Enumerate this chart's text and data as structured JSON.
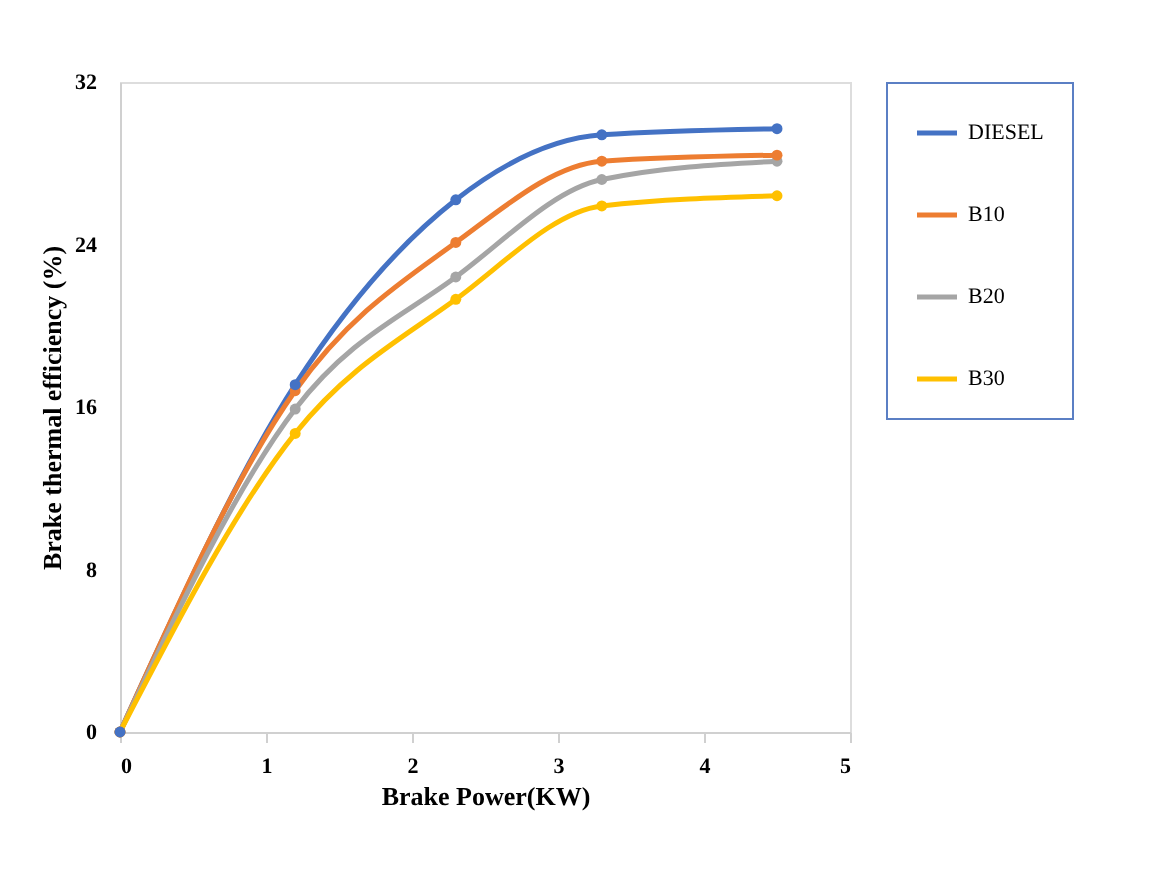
{
  "chart_data": {
    "type": "line",
    "xlabel": "Brake Power(KW)",
    "ylabel": "Brake thermal efficiency (%)",
    "x": [
      0,
      1.2,
      2.3,
      3.3,
      4.5
    ],
    "series": [
      {
        "name": "DIESEL",
        "color": "#4472c4",
        "values": [
          0,
          17.1,
          26.2,
          29.4,
          29.7
        ]
      },
      {
        "name": "B10",
        "color": "#ed7d31",
        "values": [
          0,
          16.8,
          24.1,
          28.1,
          28.4
        ]
      },
      {
        "name": "B20",
        "color": "#a5a5a5",
        "values": [
          0,
          15.9,
          22.4,
          27.2,
          28.1
        ]
      },
      {
        "name": "B30",
        "color": "#ffc000",
        "values": [
          0,
          14.7,
          21.3,
          25.9,
          26.4
        ]
      }
    ],
    "xlim": [
      0,
      5
    ],
    "xticks": [
      0,
      1,
      2,
      3,
      4,
      5
    ],
    "ylim": [
      0,
      32
    ],
    "yticks": [
      0,
      8,
      16,
      24,
      32
    ],
    "grid": false,
    "legend": "right",
    "marker": "circle",
    "line_style": "solid"
  }
}
